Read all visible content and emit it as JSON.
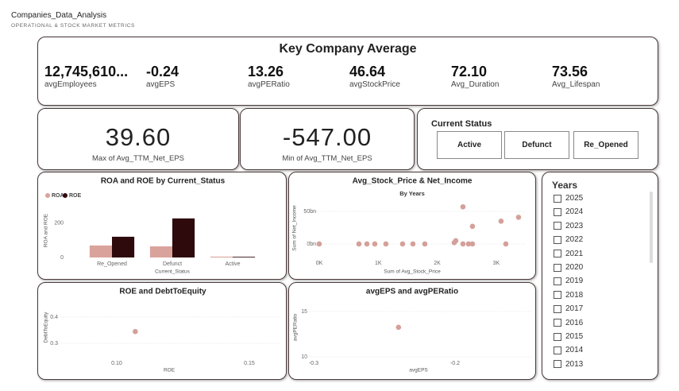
{
  "header": {
    "title": "Companies_Data_Analysis",
    "subtitle": "OPERATIONAL & STOCK MARKET METRICS"
  },
  "key_averages": {
    "title": "Key Company Average",
    "items": [
      {
        "value": "12,745,610...",
        "label": "avgEmployees"
      },
      {
        "value": "-0.24",
        "label": "avgEPS"
      },
      {
        "value": "13.26",
        "label": "avgPERatio"
      },
      {
        "value": "46.64",
        "label": "avgStockPrice"
      },
      {
        "value": "72.10",
        "label": "Avg_Duration"
      },
      {
        "value": "73.56",
        "label": "Avg_Lifespan"
      }
    ]
  },
  "cards": [
    {
      "value": "39.60",
      "label": "Max of Avg_TTM_Net_EPS"
    },
    {
      "value": "-547.00",
      "label": "Min of Avg_TTM_Net_EPS"
    }
  ],
  "current_status": {
    "title": "Current Status",
    "buttons": [
      "Active",
      "Defunct",
      "Re_Opened"
    ]
  },
  "years_slicer": {
    "title": "Years",
    "items": [
      "2025",
      "2024",
      "2023",
      "2022",
      "2021",
      "2020",
      "2019",
      "2018",
      "2017",
      "2016",
      "2015",
      "2014",
      "2013"
    ]
  },
  "chart_data": [
    {
      "type": "bar",
      "title": "ROA and ROE by Current_Status",
      "x_label": "Current_Status",
      "y_label": "ROA and ROE",
      "categories": [
        "Re_Opened",
        "Defunct",
        "Active"
      ],
      "series": [
        {
          "name": "ROA",
          "color": "#d9a39c",
          "values": [
            70,
            65,
            5
          ]
        },
        {
          "name": "ROE",
          "color": "#2e0a0c",
          "values": [
            121,
            228,
            4
          ]
        }
      ],
      "ylim": [
        0,
        320
      ],
      "yticks": [
        0,
        200
      ],
      "grid": false
    },
    {
      "type": "scatter",
      "title": "Avg_Stock_Price & Net_Income",
      "subtitle": "By Years",
      "x_label": "Sum of Avg_Stock_Price",
      "y_label": "Sum of Net_Income",
      "color": "#d4a09a",
      "x": [
        0,
        673,
        808,
        942,
        1130,
        1413,
        1588,
        1790,
        2288,
        2315,
        2436,
        2530,
        2597,
        2436,
        2597,
        3082,
        3163,
        3378
      ],
      "values": [
        0,
        0,
        0,
        0,
        0,
        0,
        0,
        0,
        2,
        5,
        0,
        0,
        0,
        57,
        27,
        35,
        0,
        41
      ],
      "xlim": [
        -250,
        3500
      ],
      "xticks": [
        {
          "value": 0,
          "label": "0K"
        },
        {
          "value": 1000,
          "label": "1K"
        },
        {
          "value": 2000,
          "label": "2K"
        },
        {
          "value": 3000,
          "label": "3K"
        }
      ],
      "ylim": [
        -12,
        65
      ],
      "yticks": [
        {
          "value": 0,
          "label": "0bn"
        },
        {
          "value": 50,
          "label": "50bn"
        }
      ],
      "grid": true
    },
    {
      "type": "scatter",
      "title": "ROE and DebtToEquity",
      "x_label": "ROE",
      "y_label": "DebtToEquity",
      "color": "#d4a09a",
      "x": [
        0.107
      ],
      "values": [
        0.345
      ],
      "xlim": [
        0.078,
        0.161
      ],
      "xticks": [
        {
          "value": 0.1,
          "label": "0.10"
        },
        {
          "value": 0.15,
          "label": "0.15"
        }
      ],
      "ylim": [
        0.26,
        0.44
      ],
      "yticks": [
        0.3,
        0.4
      ],
      "grid": true
    },
    {
      "type": "scatter",
      "title": "avgEPS and avgPERatio",
      "x_label": "avgEPS",
      "y_label": "avgPERatio",
      "color": "#d4a09a",
      "x": [
        -0.24
      ],
      "values": [
        13.26
      ],
      "xlim": [
        -0.31,
        -0.145
      ],
      "xticks": [
        -0.3,
        -0.2
      ],
      "ylim": [
        9.7,
        15.6
      ],
      "yticks": [
        10,
        15
      ],
      "grid": true
    }
  ]
}
